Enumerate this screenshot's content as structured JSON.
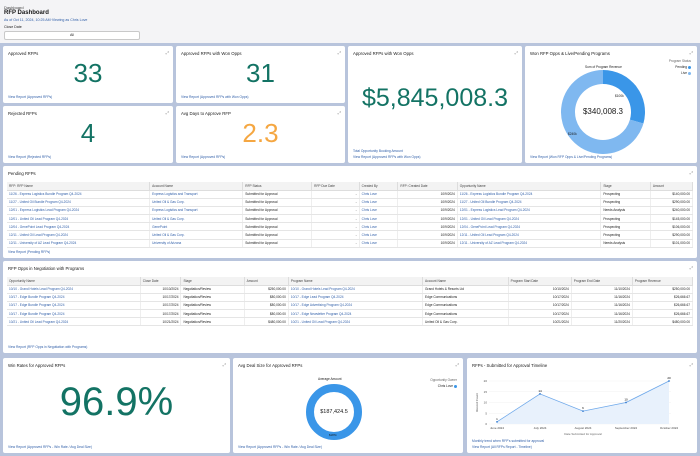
{
  "header": {
    "breadcrumb": "Dashboard",
    "title": "RFP Dashboard",
    "as_of": "As of Oct 11, 2024, 10:25 AM·Viewing as Chris Love",
    "filter_label": "Close Date",
    "filter_value": "All"
  },
  "colors": {
    "metric": "#137364",
    "metric_warn": "#f5a742",
    "link": "#2f5ea8",
    "donut_dark": "#3a96e8",
    "donut_light": "#7fb8f0"
  },
  "expand_icon": "expand-icon",
  "metrics": {
    "approved": {
      "title": "Approved RFPs",
      "value": "33",
      "link": "View Report (Approved RFPs)"
    },
    "won": {
      "title": "Approved RFPs with Won Opps",
      "value": "31",
      "link": "View Report (Approved RFPs with Won Opps)"
    },
    "rejected": {
      "title": "Rejected RFPs",
      "value": "4",
      "link": "View Report (Rejected RFPs)"
    },
    "avg_days": {
      "title": "Avg Days to Approve RFP",
      "value": "2.3",
      "link": "View Report (Approved RFPs)"
    },
    "won_amount": {
      "title": "Approved RFPs with Won Opps",
      "value": "$5,845,008.3",
      "footer": "Total Opportunity Booking Amount",
      "link": "View Report (Approved RFPs with Won Opps)"
    },
    "win_rate": {
      "title": "Win Rates for Approved RFPs",
      "value": "96.9%",
      "link": "View Report (Approved RFPs - Win Rate / Avg Deal Size)"
    }
  },
  "chart_data": [
    {
      "type": "pie",
      "title": "Won RFP Opps & Live/Pending Programs",
      "subtitle": "Sum of Program Revenue",
      "center_label": "$340,008.3",
      "legend_title": "Program Status",
      "legend_position": "top-right",
      "slices": [
        {
          "name": "Pending",
          "value": 100000,
          "label": "$100k"
        },
        {
          "name": "Live",
          "value": 240008.3,
          "label": "$240k"
        }
      ],
      "link": "View Report (Won RFP Opps & Live/Pending Programs)"
    },
    {
      "type": "pie",
      "title": "Avg Deal Size for Approved RFPs",
      "subtitle": "Average Amount",
      "center_label": "$187,424.5",
      "legend_title": "Opportunity Owner",
      "legend_position": "top-right",
      "slices": [
        {
          "name": "Chris Love",
          "value": 187424.5,
          "label": "$187k"
        }
      ],
      "link": "View Report (Approved RFPs - Win Rate / Avg Deal Size)"
    },
    {
      "type": "area",
      "title": "RFPs - Submitted for Approval Timeline",
      "categories": [
        "June 2024",
        "July 2024",
        "August 2024",
        "September 2024",
        "October 2024"
      ],
      "values": [
        1,
        14,
        6,
        10,
        20
      ],
      "ylabel": "Record Count",
      "xlabel": "Date Submitted for Approval",
      "ylim": [
        0,
        20
      ],
      "yticks": [
        0,
        5,
        10,
        15,
        20
      ],
      "footer": "Monthly trend when RFP's submitted for approval",
      "link": "View Report (All RFPs Report - Timeline)"
    }
  ],
  "pending": {
    "title": "Pending RFPs",
    "link": "View Report (Pending RFPs)",
    "columns": [
      "RFP: RFP Name",
      "Account Name",
      "RFP Status",
      "RFP Due Date",
      "Created By",
      "RFP: Created Date",
      "Opportunity Name",
      "Stage",
      "Amount"
    ],
    "rows": [
      [
        "11/26 - Express Logistics Bundle Program Q4-2024",
        "Express Logistics and Transport",
        "Submitted for Approval",
        "-",
        "Chris Love",
        "10/9/2024",
        "11/26 - Express Logistics Bundle Program Q4-2024",
        "Prospecting",
        "$140,000.00"
      ],
      [
        "11/27 - United Oil Bundle Program Q4-2024",
        "United Oil & Gas Corp.",
        "Submitted for Approval",
        "-",
        "Chris Love",
        "10/9/2024",
        "11/27 - United Oil Bundle Program Q4-2024",
        "Prospecting",
        "$290,000.00"
      ],
      [
        "12/01 - Express Logistics Lead Program Q4-2024",
        "Express Logistics and Transport",
        "Submitted for Approval",
        "-",
        "Chris Love",
        "10/9/2024",
        "12/01 - Express Logistics Lead Program Q4-2024",
        "Needs Analysis",
        "$240,000.00"
      ],
      [
        "12/01 - United Oil Lead Program Q4-2024",
        "United Oil & Gas Corp.",
        "Submitted for Approval",
        "-",
        "Chris Love",
        "10/9/2024",
        "12/01 - United Oil Lead Program Q4-2024",
        "Prospecting",
        "$145,000.00"
      ],
      [
        "12/04 - GenePoint Lead Program Q4-2024",
        "GenePoint",
        "Submitted for Approval",
        "-",
        "Chris Love",
        "10/9/2024",
        "12/04 - GenePoint Lead Program Q4-2024",
        "Prospecting",
        "$106,000.00"
      ],
      [
        "12/11 - United Oil Lead Program Q4-2024",
        "United Oil & Gas Corp.",
        "Submitted for Approval",
        "-",
        "Chris Love",
        "10/9/2024",
        "12/11 - United Oil Lead Program Q4-2024",
        "Prospecting",
        "$290,000.00"
      ],
      [
        "12/11 - University of AZ Lead Program Q4-2024",
        "University of Arizona",
        "Submitted for Approval",
        "-",
        "Chris Love",
        "10/9/2024",
        "12/11 - University of AZ Lead Program Q4-2024",
        "Needs Analysis",
        "$101,000.00"
      ]
    ]
  },
  "negotiation": {
    "title": "RFP Opps in Negotiation with Programs",
    "link": "View Report (RFP Opps in Negotiation with Programs)",
    "columns": [
      "Opportunity Name",
      "Close Date",
      "Stage",
      "Amount",
      "Program Name",
      "Account Name",
      "Program Start Date",
      "Program End Date",
      "Program Revenue"
    ],
    "rows": [
      [
        "10/10 - Grand Hotels Lead Program Q4-2024",
        "10/10/2024",
        "Negotiation/Review",
        "$250,000.00",
        "10/10 - Grand Hotels Lead Program Q4-2024",
        "Grand Hotels & Resorts Ltd",
        "10/10/2024",
        "11/10/2024",
        "$250,000.00"
      ],
      [
        "10/17 - Edge Bundle Program Q4-2024",
        "10/17/2024",
        "Negotiation/Review",
        "$80,000.00",
        "10/17 - Edge Lead Program Q4-2024",
        "Edge Communications",
        "10/17/2024",
        "11/16/2024",
        "$26,666.67"
      ],
      [
        "10/17 - Edge Bundle Program Q4-2024",
        "10/17/2024",
        "Negotiation/Review",
        "$80,000.00",
        "10/17 - Edge Advertising Program Q4-2024",
        "Edge Communications",
        "10/17/2024",
        "11/16/2024",
        "$26,666.67"
      ],
      [
        "10/17 - Edge Bundle Program Q4-2024",
        "10/17/2024",
        "Negotiation/Review",
        "$80,000.00",
        "10/17 - Edge Newsletter Program Q4-2024",
        "Edge Communications",
        "10/17/2024",
        "11/16/2024",
        "$26,666.67"
      ],
      [
        "10/21 - United Oil Lead Program Q4-2024",
        "10/21/2024",
        "Negotiation/Review",
        "$480,000.00",
        "10/21 - United Oil Lead Program Q4-2024",
        "United Oil & Gas Corp.",
        "10/21/2024",
        "11/20/2024",
        "$480,000.00"
      ]
    ]
  }
}
